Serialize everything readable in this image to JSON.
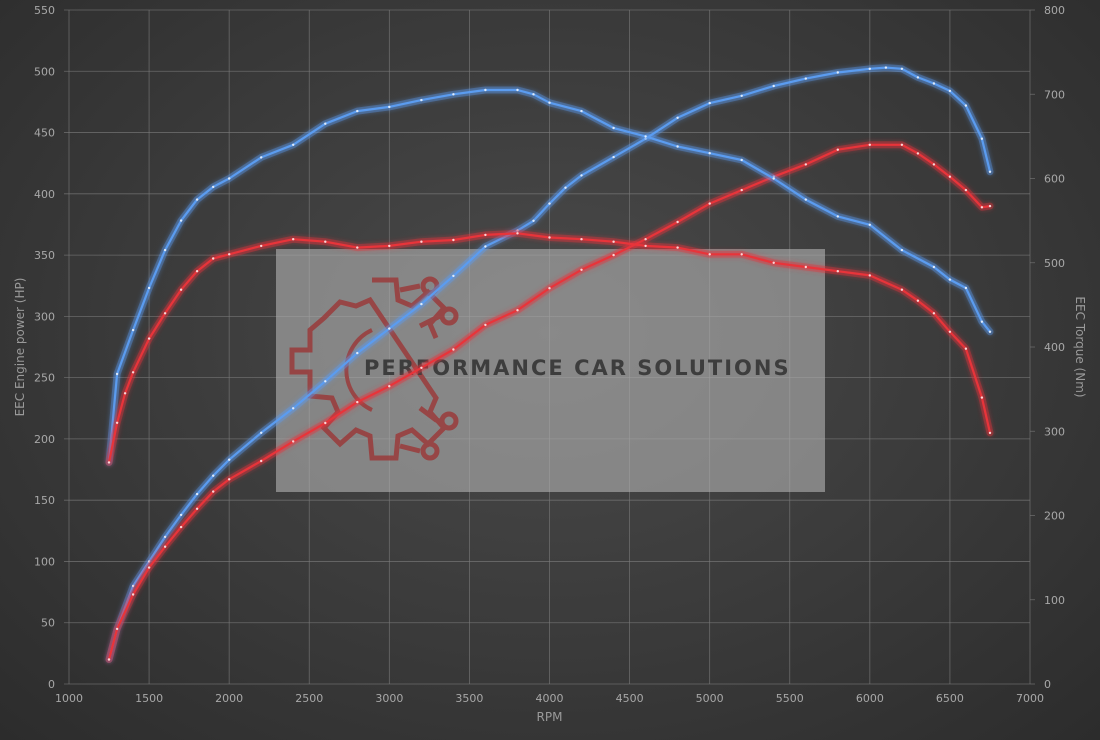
{
  "chart_data": {
    "type": "line",
    "xlabel": "RPM",
    "ylabel_left": "EEC Engine power (HP)",
    "ylabel_right": "EEC Torque (Nm)",
    "xlim": [
      1000,
      7000
    ],
    "xticks": [
      1000,
      1500,
      2000,
      2500,
      3000,
      3500,
      4000,
      4500,
      5000,
      5500,
      6000,
      6500,
      7000
    ],
    "ylim_left": [
      0,
      550
    ],
    "yticks_left": [
      0,
      50,
      100,
      150,
      200,
      250,
      300,
      350,
      400,
      450,
      500,
      550
    ],
    "ylim_right": [
      0,
      800
    ],
    "yticks_right": [
      0,
      100,
      200,
      300,
      400,
      500,
      600,
      700,
      800
    ],
    "grid": true,
    "series": [
      {
        "axis": "left",
        "color": "#5b9cf0",
        "x": [
          1250,
          1300,
          1400,
          1500,
          1600,
          1700,
          1800,
          1900,
          2000,
          2200,
          2400,
          2600,
          2800,
          3000,
          3200,
          3400,
          3600,
          3800,
          3900,
          4000,
          4100,
          4200,
          4400,
          4600,
          4800,
          5000,
          5200,
          5400,
          5600,
          5800,
          6000,
          6100,
          6200,
          6300,
          6400,
          6500,
          6600,
          6700,
          6750
        ],
        "y": [
          20,
          45,
          80,
          100,
          120,
          138,
          155,
          170,
          183,
          205,
          225,
          247,
          270,
          290,
          310,
          333,
          357,
          370,
          378,
          392,
          405,
          415,
          430,
          445,
          462,
          474,
          480,
          488,
          494,
          499,
          502,
          503,
          502,
          495,
          490,
          484,
          472,
          445,
          418
        ]
      },
      {
        "axis": "left",
        "color": "#e8343a",
        "x": [
          1250,
          1300,
          1400,
          1500,
          1600,
          1700,
          1800,
          1900,
          2000,
          2200,
          2400,
          2600,
          2800,
          3000,
          3200,
          3400,
          3600,
          3800,
          4000,
          4200,
          4400,
          4600,
          4800,
          5000,
          5200,
          5400,
          5600,
          5800,
          6000,
          6200,
          6300,
          6400,
          6500,
          6600,
          6700,
          6750
        ],
        "y": [
          20,
          45,
          73,
          95,
          112,
          128,
          143,
          157,
          167,
          182,
          198,
          213,
          230,
          243,
          258,
          273,
          293,
          305,
          323,
          338,
          350,
          363,
          377,
          392,
          403,
          414,
          424,
          436,
          440,
          440,
          433,
          424,
          414,
          403,
          389,
          390
        ]
      },
      {
        "axis": "right",
        "color": "#5b9cf0",
        "x": [
          1250,
          1300,
          1400,
          1500,
          1600,
          1700,
          1800,
          1900,
          2000,
          2200,
          2400,
          2600,
          2800,
          3000,
          3200,
          3400,
          3600,
          3800,
          3900,
          4000,
          4200,
          4400,
          4600,
          4800,
          5000,
          5200,
          5400,
          5600,
          5800,
          6000,
          6200,
          6400,
          6500,
          6600,
          6700,
          6750
        ],
        "y": [
          263,
          368,
          420,
          470,
          515,
          550,
          575,
          590,
          600,
          625,
          640,
          665,
          680,
          685,
          693,
          700,
          705,
          705,
          700,
          690,
          680,
          660,
          650,
          638,
          630,
          622,
          600,
          575,
          555,
          545,
          515,
          495,
          480,
          470,
          430,
          418
        ]
      },
      {
        "axis": "right",
        "color": "#e8343a",
        "x": [
          1250,
          1300,
          1350,
          1400,
          1500,
          1600,
          1700,
          1800,
          1900,
          2000,
          2200,
          2400,
          2600,
          2800,
          3000,
          3200,
          3400,
          3600,
          3800,
          4000,
          4200,
          4400,
          4600,
          4800,
          5000,
          5200,
          5400,
          5600,
          5800,
          6000,
          6200,
          6300,
          6400,
          6500,
          6600,
          6700,
          6750
        ],
        "y": [
          263,
          310,
          345,
          370,
          410,
          440,
          468,
          490,
          505,
          510,
          520,
          528,
          525,
          518,
          520,
          525,
          527,
          533,
          535,
          530,
          528,
          525,
          520,
          518,
          510,
          510,
          500,
          495,
          490,
          485,
          468,
          455,
          440,
          418,
          398,
          340,
          298
        ]
      }
    ]
  },
  "watermark": {
    "text": "PERFORMANCE CAR SOLUTIONS",
    "logo_icon": "gear-circuit-icon"
  }
}
